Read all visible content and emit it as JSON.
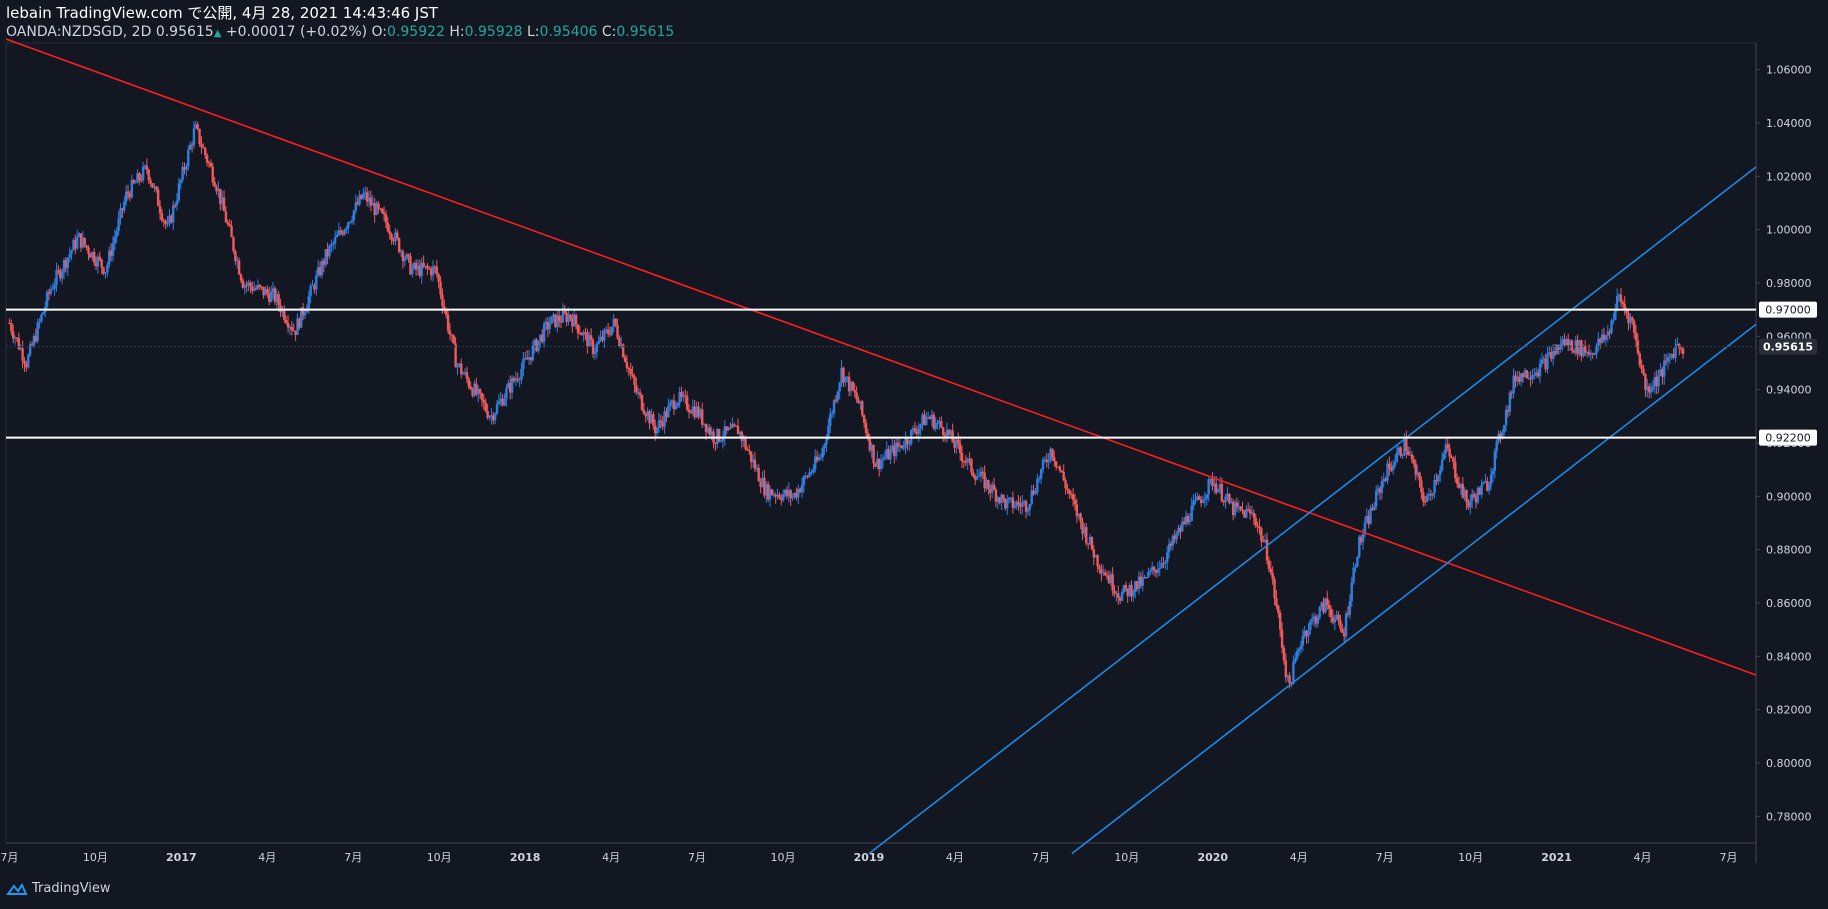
{
  "header": {
    "line1": "lebain TradingView.com で公開, 4月 28, 2021 14:43:46 JST",
    "symbol": "OANDA:NZDSGD, 2D",
    "last": "0.95615",
    "change": "+0.00017 (+0.02%)",
    "o_label": "O:",
    "o_val": "0.95922",
    "h_label": "H:",
    "h_val": "0.95928",
    "l_label": "L:",
    "l_val": "0.95406",
    "c_label": "C:",
    "c_val": "0.95615"
  },
  "branding": {
    "label": "TradingView"
  },
  "colors": {
    "background": "#131722",
    "up": "#2f7fe0",
    "down": "#f05a5a",
    "trendline": "#ff1e1e",
    "channel": "#1e88e5",
    "level": "#ffffff",
    "axis_text": "#d1d4dc"
  },
  "chart_data": {
    "type": "candlestick",
    "title": "OANDA:NZDSGD, 2D",
    "ylim": [
      0.77,
      1.07
    ],
    "y_ticks": [
      "1.06000",
      "1.04000",
      "1.02000",
      "1.00000",
      "0.98000",
      "0.96000",
      "0.94000",
      "0.92000",
      "0.90000",
      "0.88000",
      "0.86000",
      "0.84000",
      "0.82000",
      "0.80000",
      "0.78000"
    ],
    "x_ticks": [
      {
        "t": 2016.5,
        "label": "7月"
      },
      {
        "t": 2016.75,
        "label": "10月"
      },
      {
        "t": 2017.0,
        "label": "2017",
        "bold": true
      },
      {
        "t": 2017.25,
        "label": "4月"
      },
      {
        "t": 2017.5,
        "label": "7月"
      },
      {
        "t": 2017.75,
        "label": "10月"
      },
      {
        "t": 2018.0,
        "label": "2018",
        "bold": true
      },
      {
        "t": 2018.25,
        "label": "4月"
      },
      {
        "t": 2018.5,
        "label": "7月"
      },
      {
        "t": 2018.75,
        "label": "10月"
      },
      {
        "t": 2019.0,
        "label": "2019",
        "bold": true
      },
      {
        "t": 2019.25,
        "label": "4月"
      },
      {
        "t": 2019.5,
        "label": "7月"
      },
      {
        "t": 2019.75,
        "label": "10月"
      },
      {
        "t": 2020.0,
        "label": "2020",
        "bold": true
      },
      {
        "t": 2020.25,
        "label": "4月"
      },
      {
        "t": 2020.5,
        "label": "7月"
      },
      {
        "t": 2020.75,
        "label": "10月"
      },
      {
        "t": 2021.0,
        "label": "2021",
        "bold": true
      },
      {
        "t": 2021.25,
        "label": "4月"
      },
      {
        "t": 2021.5,
        "label": "7月"
      }
    ],
    "x_range": [
      2016.49,
      2021.58
    ],
    "price_path": [
      [
        2016.5,
        0.965
      ],
      [
        2016.55,
        0.95
      ],
      [
        2016.62,
        0.978
      ],
      [
        2016.7,
        0.997
      ],
      [
        2016.78,
        0.985
      ],
      [
        2016.84,
        1.013
      ],
      [
        2016.9,
        1.023
      ],
      [
        2016.96,
        1.0
      ],
      [
        2017.04,
        1.038
      ],
      [
        2017.1,
        1.018
      ],
      [
        2017.18,
        0.98
      ],
      [
        2017.27,
        0.975
      ],
      [
        2017.33,
        0.962
      ],
      [
        2017.42,
        0.99
      ],
      [
        2017.53,
        1.013
      ],
      [
        2017.6,
        1.002
      ],
      [
        2017.67,
        0.985
      ],
      [
        2017.74,
        0.985
      ],
      [
        2017.8,
        0.95
      ],
      [
        2017.9,
        0.93
      ],
      [
        2018.0,
        0.95
      ],
      [
        2018.07,
        0.965
      ],
      [
        2018.13,
        0.968
      ],
      [
        2018.2,
        0.955
      ],
      [
        2018.26,
        0.965
      ],
      [
        2018.32,
        0.94
      ],
      [
        2018.38,
        0.925
      ],
      [
        2018.44,
        0.937
      ],
      [
        2018.5,
        0.932
      ],
      [
        2018.55,
        0.922
      ],
      [
        2018.62,
        0.925
      ],
      [
        2018.7,
        0.902
      ],
      [
        2018.78,
        0.9
      ],
      [
        2018.86,
        0.915
      ],
      [
        2018.92,
        0.947
      ],
      [
        2018.97,
        0.935
      ],
      [
        2019.02,
        0.912
      ],
      [
        2019.1,
        0.92
      ],
      [
        2019.17,
        0.93
      ],
      [
        2019.22,
        0.925
      ],
      [
        2019.3,
        0.91
      ],
      [
        2019.4,
        0.897
      ],
      [
        2019.46,
        0.897
      ],
      [
        2019.53,
        0.918
      ],
      [
        2019.6,
        0.895
      ],
      [
        2019.66,
        0.877
      ],
      [
        2019.73,
        0.863
      ],
      [
        2019.8,
        0.868
      ],
      [
        2019.86,
        0.877
      ],
      [
        2019.93,
        0.893
      ],
      [
        2020.0,
        0.906
      ],
      [
        2020.06,
        0.895
      ],
      [
        2020.12,
        0.893
      ],
      [
        2020.16,
        0.878
      ],
      [
        2020.19,
        0.855
      ],
      [
        2020.22,
        0.828
      ],
      [
        2020.26,
        0.848
      ],
      [
        2020.33,
        0.86
      ],
      [
        2020.38,
        0.848
      ],
      [
        2020.42,
        0.88
      ],
      [
        2020.5,
        0.908
      ],
      [
        2020.56,
        0.92
      ],
      [
        2020.62,
        0.897
      ],
      [
        2020.68,
        0.918
      ],
      [
        2020.74,
        0.897
      ],
      [
        2020.8,
        0.905
      ],
      [
        2020.88,
        0.945
      ],
      [
        2020.95,
        0.948
      ],
      [
        2021.02,
        0.958
      ],
      [
        2021.1,
        0.954
      ],
      [
        2021.15,
        0.961
      ],
      [
        2021.18,
        0.975
      ],
      [
        2021.22,
        0.965
      ],
      [
        2021.26,
        0.94
      ],
      [
        2021.3,
        0.945
      ],
      [
        2021.35,
        0.957
      ],
      [
        2021.37,
        0.956
      ]
    ],
    "horizontal_levels": [
      {
        "price": 0.97,
        "label": "0.97000"
      },
      {
        "price": 0.922,
        "label": "0.92200"
      }
    ],
    "current_price": {
      "price": 0.95615,
      "label": "0.95615"
    },
    "trendlines": [
      {
        "name": "descending-resistance",
        "color": "#ff1e1e",
        "p1": [
          2016.49,
          1.0715
        ],
        "p2": [
          2021.58,
          0.833
        ]
      },
      {
        "name": "channel-upper",
        "color": "#1e88e5",
        "p1": [
          2019.0,
          0.766
        ],
        "p2": [
          2021.58,
          1.0235
        ]
      },
      {
        "name": "channel-lower",
        "color": "#1e88e5",
        "p1": [
          2019.59,
          0.766
        ],
        "p2": [
          2021.58,
          0.9645
        ]
      }
    ]
  }
}
